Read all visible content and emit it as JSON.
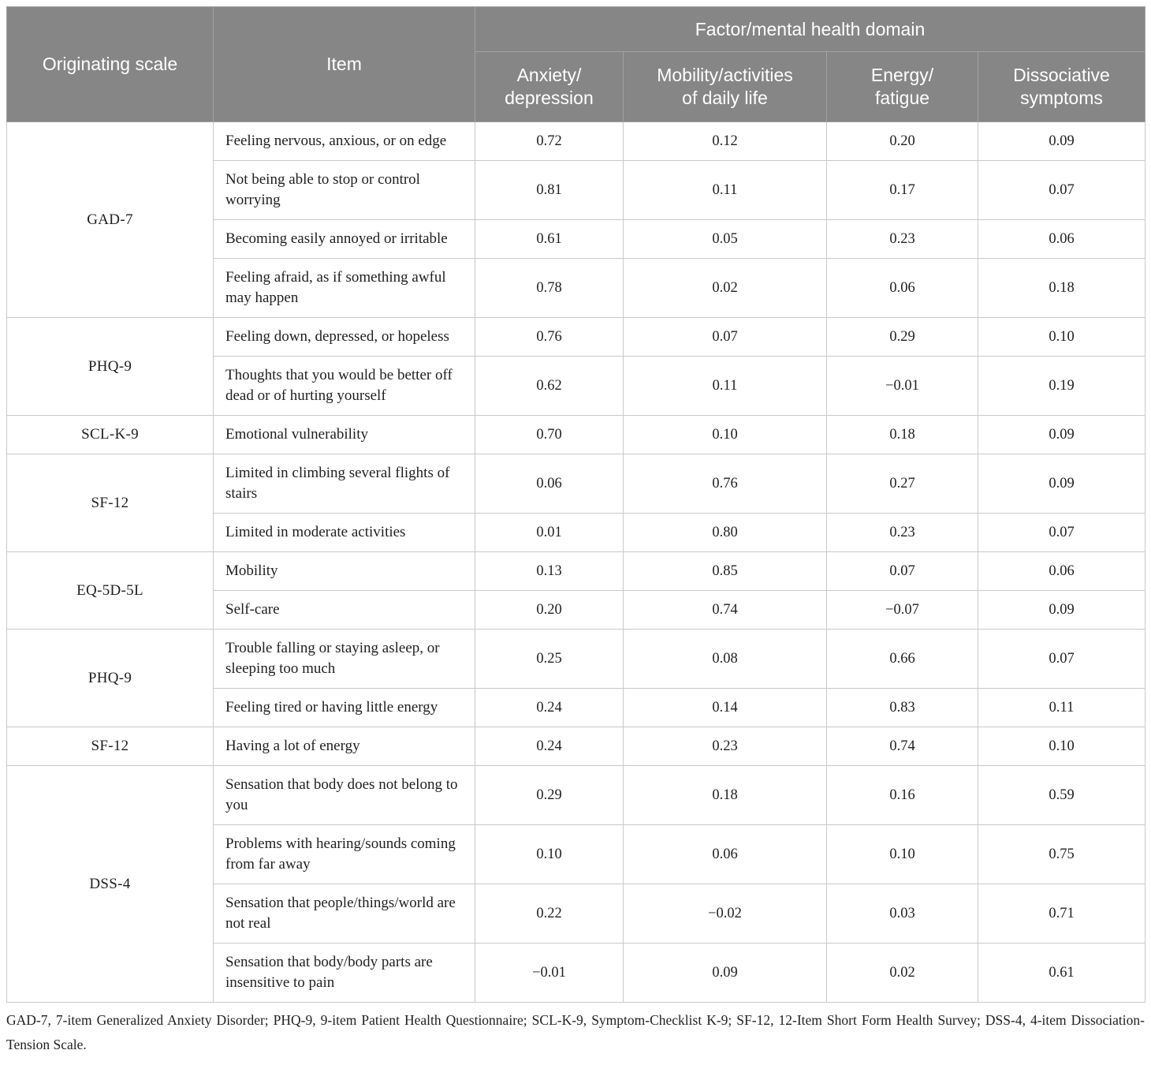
{
  "header": {
    "originating_scale": "Originating scale",
    "item": "Item",
    "factor_domain": "Factor/mental health domain",
    "factors": [
      "Anxiety/\ndepression",
      "Mobility/activities\nof daily life",
      "Energy/\nfatigue",
      "Dissociative\nsymptoms"
    ]
  },
  "groups": [
    {
      "scale": "GAD-7",
      "items": [
        {
          "label": "Feeling nervous, anxious, or on edge",
          "values": [
            "0.72",
            "0.12",
            "0.20",
            "0.09"
          ]
        },
        {
          "label": "Not being able to stop or control worrying",
          "values": [
            "0.81",
            "0.11",
            "0.17",
            "0.07"
          ]
        },
        {
          "label": "Becoming easily annoyed or irritable",
          "values": [
            "0.61",
            "0.05",
            "0.23",
            "0.06"
          ]
        },
        {
          "label": "Feeling afraid, as if something awful may happen",
          "values": [
            "0.78",
            "0.02",
            "0.06",
            "0.18"
          ]
        }
      ]
    },
    {
      "scale": "PHQ-9",
      "items": [
        {
          "label": "Feeling down, depressed, or hopeless",
          "values": [
            "0.76",
            "0.07",
            "0.29",
            "0.10"
          ]
        },
        {
          "label": "Thoughts that you would be better off dead or of hurting yourself",
          "values": [
            "0.62",
            "0.11",
            "−0.01",
            "0.19"
          ]
        }
      ]
    },
    {
      "scale": "SCL-K-9",
      "items": [
        {
          "label": "Emotional vulnerability",
          "values": [
            "0.70",
            "0.10",
            "0.18",
            "0.09"
          ]
        }
      ]
    },
    {
      "scale": "SF-12",
      "items": [
        {
          "label": "Limited in climbing several flights of stairs",
          "values": [
            "0.06",
            "0.76",
            "0.27",
            "0.09"
          ]
        },
        {
          "label": "Limited in moderate activities",
          "values": [
            "0.01",
            "0.80",
            "0.23",
            "0.07"
          ]
        }
      ]
    },
    {
      "scale": "EQ-5D-5L",
      "items": [
        {
          "label": "Mobility",
          "values": [
            "0.13",
            "0.85",
            "0.07",
            "0.06"
          ]
        },
        {
          "label": "Self-care",
          "values": [
            "0.20",
            "0.74",
            "−0.07",
            "0.09"
          ]
        }
      ]
    },
    {
      "scale": "PHQ-9",
      "items": [
        {
          "label": "Trouble falling or staying asleep, or sleeping too much",
          "values": [
            "0.25",
            "0.08",
            "0.66",
            "0.07"
          ]
        },
        {
          "label": "Feeling tired or having little energy",
          "values": [
            "0.24",
            "0.14",
            "0.83",
            "0.11"
          ]
        }
      ]
    },
    {
      "scale": "SF-12",
      "items": [
        {
          "label": "Having a lot of energy",
          "values": [
            "0.24",
            "0.23",
            "0.74",
            "0.10"
          ]
        }
      ]
    },
    {
      "scale": "DSS-4",
      "items": [
        {
          "label": "Sensation that body does not belong to you",
          "values": [
            "0.29",
            "0.18",
            "0.16",
            "0.59"
          ]
        },
        {
          "label": "Problems with hearing/sounds coming from far away",
          "values": [
            "0.10",
            "0.06",
            "0.10",
            "0.75"
          ]
        },
        {
          "label": "Sensation that people/things/world are not real",
          "values": [
            "0.22",
            "−0.02",
            "0.03",
            "0.71"
          ]
        },
        {
          "label": "Sensation that body/body parts are insensitive to pain",
          "values": [
            "−0.01",
            "0.09",
            "0.02",
            "0.61"
          ]
        }
      ]
    }
  ],
  "footnote": "GAD-7, 7-item Generalized Anxiety Disorder; PHQ-9, 9-item Patient Health Questionnaire; SCL-K-9, Symptom-Checklist K-9; SF-12, 12-Item Short Form Health Survey; DSS-4, 4-item Dissociation-Tension Scale.",
  "colors": {
    "header_bg": "#868686",
    "header_text": "#ffffff",
    "header_divider": "#a2a2a2",
    "body_border": "#c9c9c9",
    "body_text": "#1f1f1f"
  }
}
